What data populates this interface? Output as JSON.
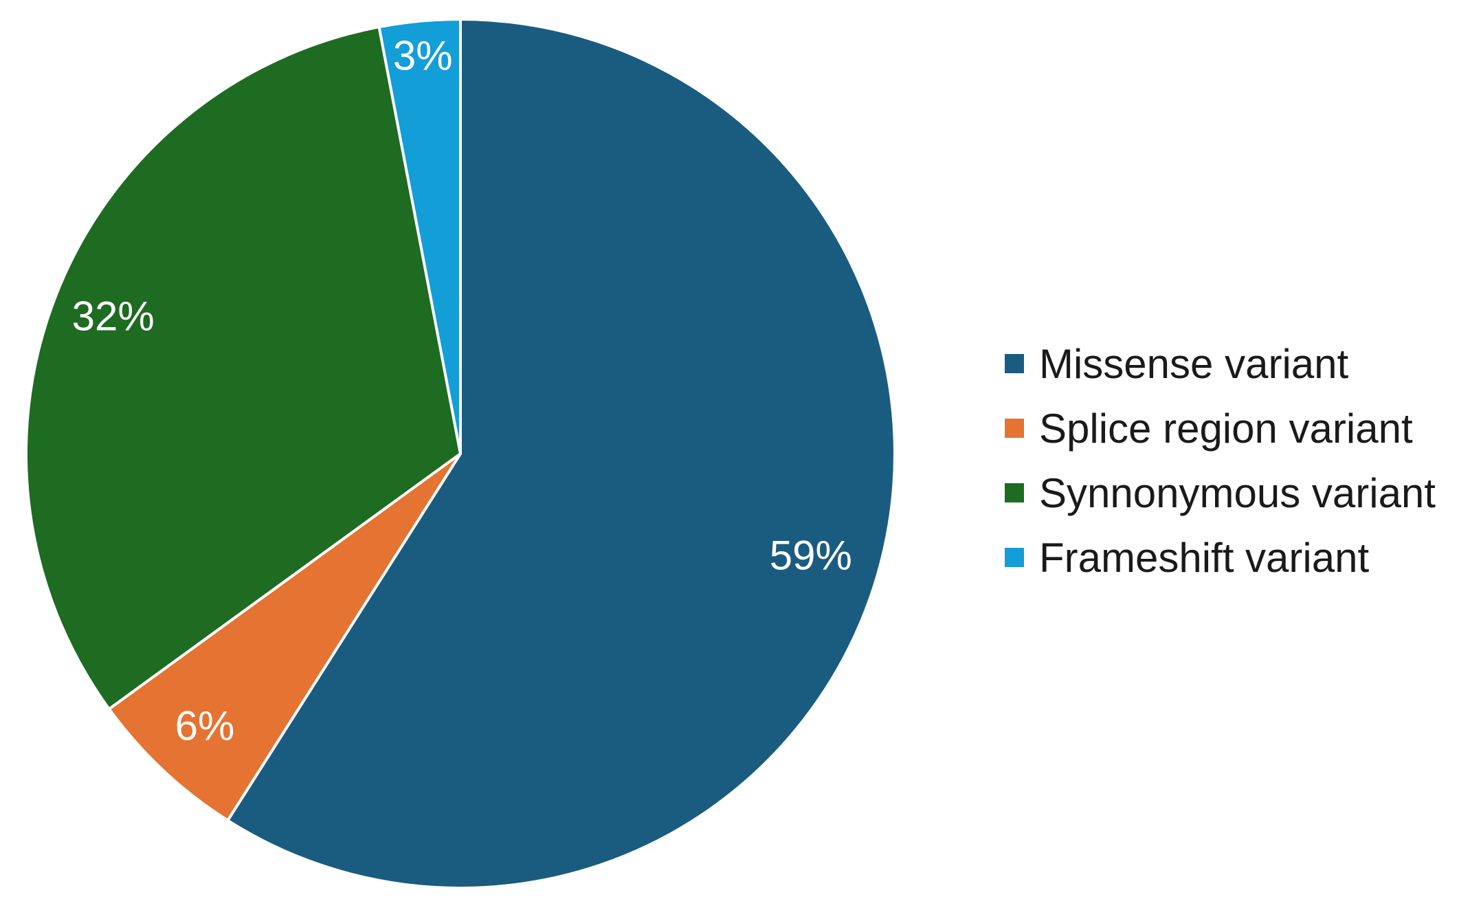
{
  "chart_data": {
    "type": "pie",
    "title": "",
    "start_angle_deg": 0,
    "direction": "clockwise",
    "legend_position": "right",
    "slices": [
      {
        "name": "Missense variant",
        "value": 59,
        "label": "59%",
        "color": "#1a5c80"
      },
      {
        "name": "Splice region variant",
        "value": 6,
        "label": "6%",
        "color": "#e57332"
      },
      {
        "name": "Synnonymous variant",
        "value": 32,
        "label": "32%",
        "color": "#1e6b22"
      },
      {
        "name": "Frameshift variant",
        "value": 3,
        "label": "3%",
        "color": "#139ed8"
      }
    ]
  }
}
